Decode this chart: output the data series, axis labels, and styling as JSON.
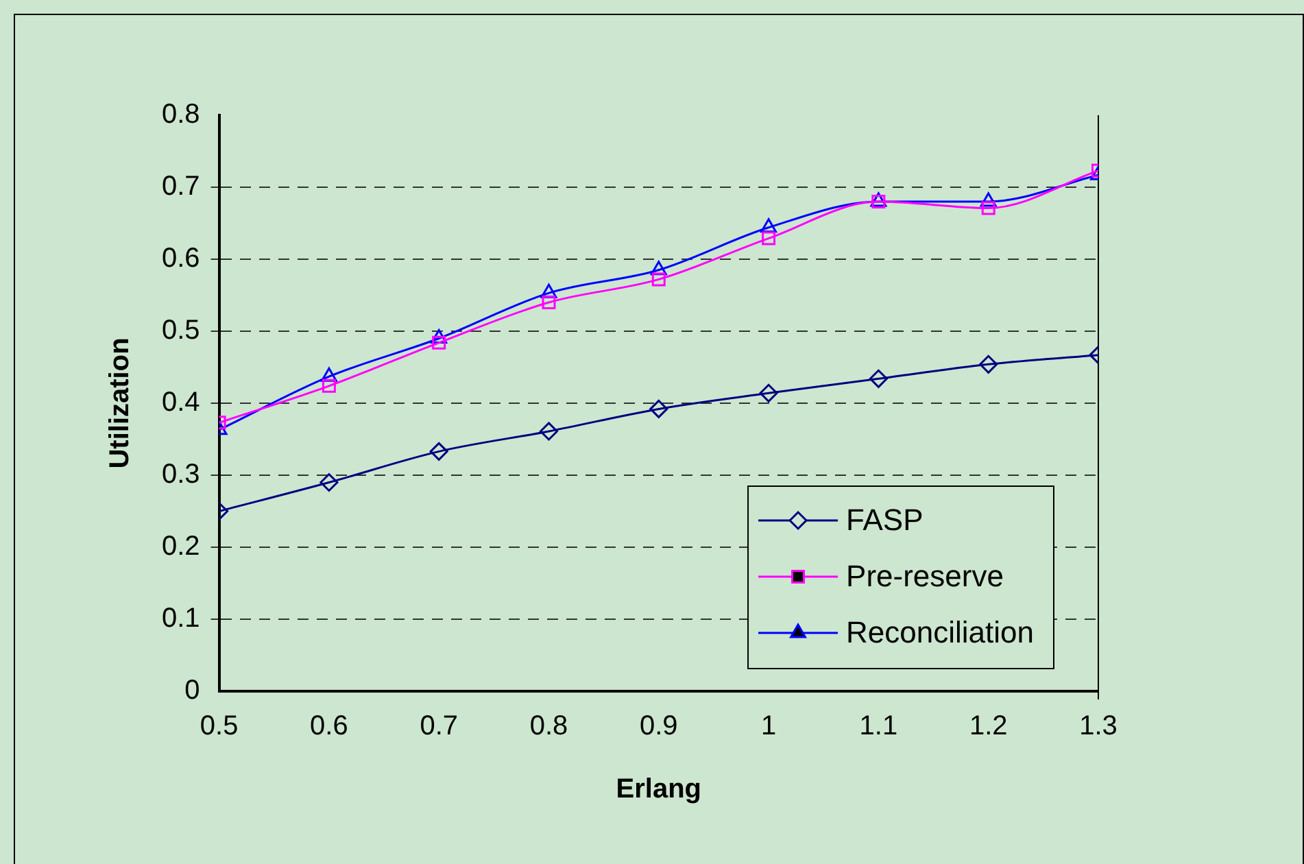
{
  "chart_data": {
    "type": "line",
    "xlabel": "Erlang",
    "ylabel": "Utilization",
    "x": [
      0.5,
      0.6,
      0.7,
      0.8,
      0.9,
      1.0,
      1.1,
      1.2,
      1.3
    ],
    "xlim": [
      0.5,
      1.3
    ],
    "xticks": [
      0.5,
      0.6,
      0.7,
      0.8,
      0.9,
      1,
      1.1,
      1.2,
      1.3
    ],
    "ylim": [
      0,
      0.8
    ],
    "yticks": [
      0,
      0.1,
      0.2,
      0.3,
      0.4,
      0.5,
      0.6,
      0.7,
      0.8
    ],
    "grid": "y",
    "legend": "bottom right",
    "line_style": "solid",
    "series": [
      {
        "name": "FASP",
        "color": "#000080",
        "marker": "diamond",
        "values": [
          0.25,
          0.29,
          0.333,
          0.361,
          0.392,
          0.414,
          0.434,
          0.454,
          0.467
        ]
      },
      {
        "name": "Pre-reserve",
        "color": "#ff00ff",
        "marker": "square",
        "values": [
          0.373,
          0.424,
          0.484,
          0.54,
          0.572,
          0.629,
          0.68,
          0.671,
          0.723
        ]
      },
      {
        "name": "Reconciliation",
        "color": "#0000ff",
        "marker": "triangle",
        "values": [
          0.363,
          0.437,
          0.49,
          0.553,
          0.585,
          0.644,
          0.68,
          0.68,
          0.717
        ]
      }
    ]
  }
}
